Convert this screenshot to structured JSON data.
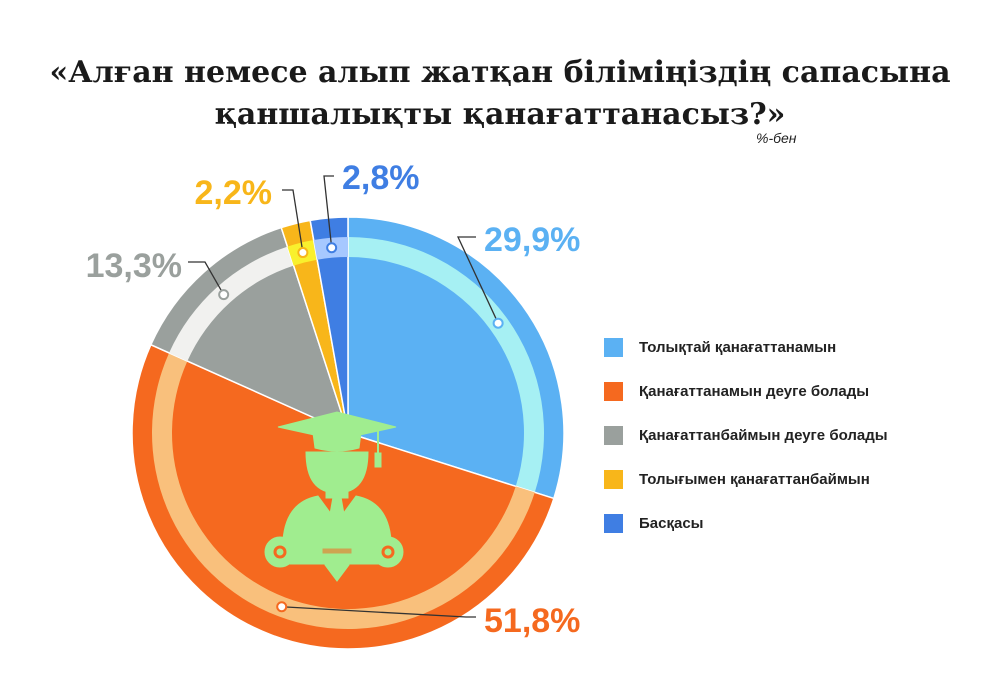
{
  "title_lines": [
    "«Алған немесе алып жатқан біліміңіздің сапасына",
    "қаншалықты қанағаттанасыз?»"
  ],
  "unit_note": "%-бен",
  "chart_data": {
    "type": "pie",
    "categories": [
      "Толықтай қанағаттанамын",
      "Қанағаттанамын деуге болады",
      "Қанағаттанбаймын деуге болады",
      "Толығымен қанағаттанбаймын",
      "Басқасы"
    ],
    "values": [
      29.9,
      51.8,
      13.3,
      2.2,
      2.8
    ],
    "value_labels": [
      "29,9%",
      "51,8%",
      "13,3%",
      "2,2%",
      "2,8%"
    ],
    "colors": [
      "#5bb1f3",
      "#f5691f",
      "#9aa09d",
      "#f8b61a",
      "#3f7ee3"
    ],
    "ring_colors": [
      "#a6f0f3",
      "#f9c07c",
      "#f1f1ef",
      "#f9f02d",
      "#a6c8ff"
    ],
    "start": "12 o'clock",
    "direction": "clockwise",
    "legend_position": "right"
  },
  "icon": {
    "name": "graduate-icon",
    "color": "#a0ed8f"
  }
}
